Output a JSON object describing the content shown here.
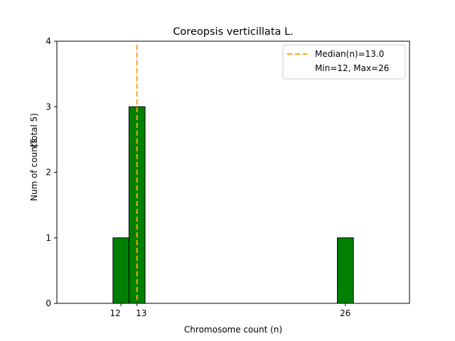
{
  "chart_data": {
    "type": "bar",
    "title": "Coreopsis verticillata L.",
    "xlabel": "Chromosome count (n)",
    "ylabel": "Num of counts",
    "ylabel_secondary": "(Total 5)",
    "bars": [
      {
        "x": 12,
        "count": 1
      },
      {
        "x": 13,
        "count": 3
      },
      {
        "x": 26,
        "count": 1
      }
    ],
    "bar_width": 1,
    "bar_color": "#008000",
    "bar_edge_color": "#000000",
    "xlim": [
      8,
      30
    ],
    "ylim": [
      0,
      4
    ],
    "xticks": [
      12,
      13,
      26
    ],
    "xtick_labels": [
      "12",
      "13",
      "26"
    ],
    "yticks": [
      0,
      1,
      2,
      3,
      4
    ],
    "ytick_labels": [
      "0",
      "1",
      "2",
      "3",
      "4"
    ],
    "median_line": {
      "x": 13.0,
      "color": "#FFA500",
      "style": "dashed"
    },
    "legend": {
      "placement": "upper right",
      "entries": [
        "Median(n)=13.0",
        "Min=12, Max=26"
      ]
    },
    "grid": false
  }
}
